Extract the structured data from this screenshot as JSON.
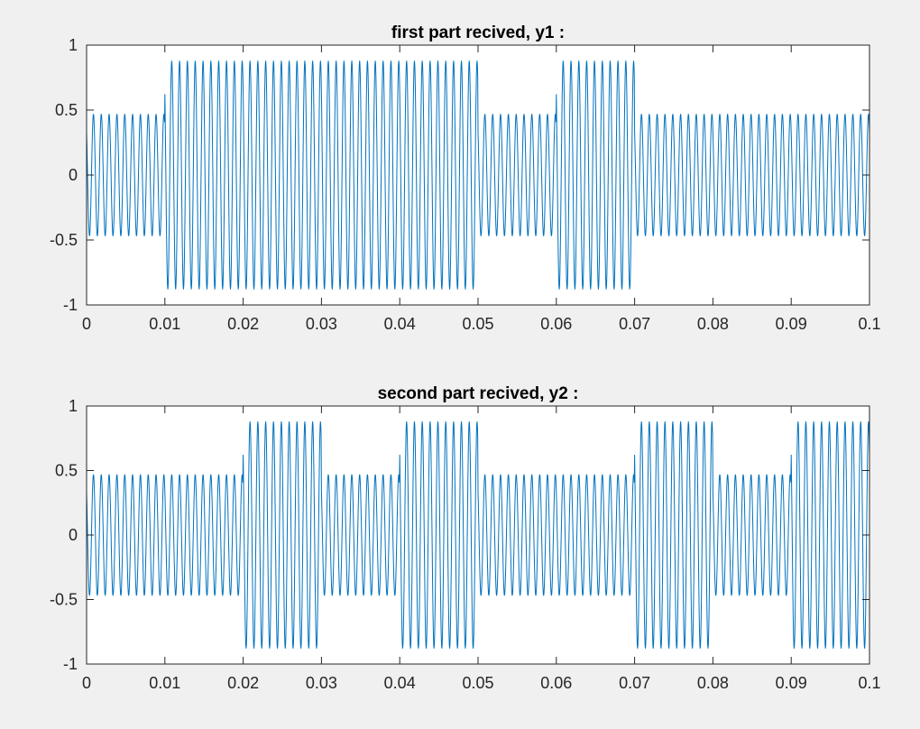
{
  "figure": {
    "background": "#f0f0f0"
  },
  "chart_data": [
    {
      "type": "line",
      "title": "first part recived, y1 :",
      "xlabel": "",
      "ylabel": "",
      "xlim": [
        0,
        0.1
      ],
      "ylim": [
        -1,
        1
      ],
      "xticks": [
        "0",
        "0.01",
        "0.02",
        "0.03",
        "0.04",
        "0.05",
        "0.06",
        "0.07",
        "0.08",
        "0.09",
        "0.1"
      ],
      "yticks": [
        "1",
        "0.5",
        "0",
        "-0.5",
        "-1"
      ],
      "grid": false,
      "series": [
        {
          "color": "#0072bd",
          "signal": {
            "carrier_cycles_per_0_01": 10,
            "amplitude_segments": [
              {
                "x_start": 0,
                "x_end": 0.01,
                "amplitude": 0.47
              },
              {
                "x_start": 0.01,
                "x_end": 0.05,
                "amplitude": 0.88
              },
              {
                "x_start": 0.05,
                "x_end": 0.06,
                "amplitude": 0.47
              },
              {
                "x_start": 0.06,
                "x_end": 0.07,
                "amplitude": 0.88
              },
              {
                "x_start": 0.07,
                "x_end": 0.1,
                "amplitude": 0.47
              }
            ]
          }
        }
      ]
    },
    {
      "type": "line",
      "title": "second part recived, y2 :",
      "xlabel": "",
      "ylabel": "",
      "xlim": [
        0,
        0.1
      ],
      "ylim": [
        -1,
        1
      ],
      "xticks": [
        "0",
        "0.01",
        "0.02",
        "0.03",
        "0.04",
        "0.05",
        "0.06",
        "0.07",
        "0.08",
        "0.09",
        "0.1"
      ],
      "yticks": [
        "1",
        "0.5",
        "0",
        "-0.5",
        "-1"
      ],
      "grid": false,
      "series": [
        {
          "color": "#0072bd",
          "signal": {
            "carrier_cycles_per_0_01": 10,
            "amplitude_segments": [
              {
                "x_start": 0,
                "x_end": 0.02,
                "amplitude": 0.47
              },
              {
                "x_start": 0.02,
                "x_end": 0.03,
                "amplitude": 0.88
              },
              {
                "x_start": 0.03,
                "x_end": 0.04,
                "amplitude": 0.47
              },
              {
                "x_start": 0.04,
                "x_end": 0.05,
                "amplitude": 0.88
              },
              {
                "x_start": 0.05,
                "x_end": 0.07,
                "amplitude": 0.47
              },
              {
                "x_start": 0.07,
                "x_end": 0.08,
                "amplitude": 0.88
              },
              {
                "x_start": 0.08,
                "x_end": 0.09,
                "amplitude": 0.47
              },
              {
                "x_start": 0.09,
                "x_end": 0.1,
                "amplitude": 0.88
              }
            ]
          }
        }
      ]
    }
  ]
}
